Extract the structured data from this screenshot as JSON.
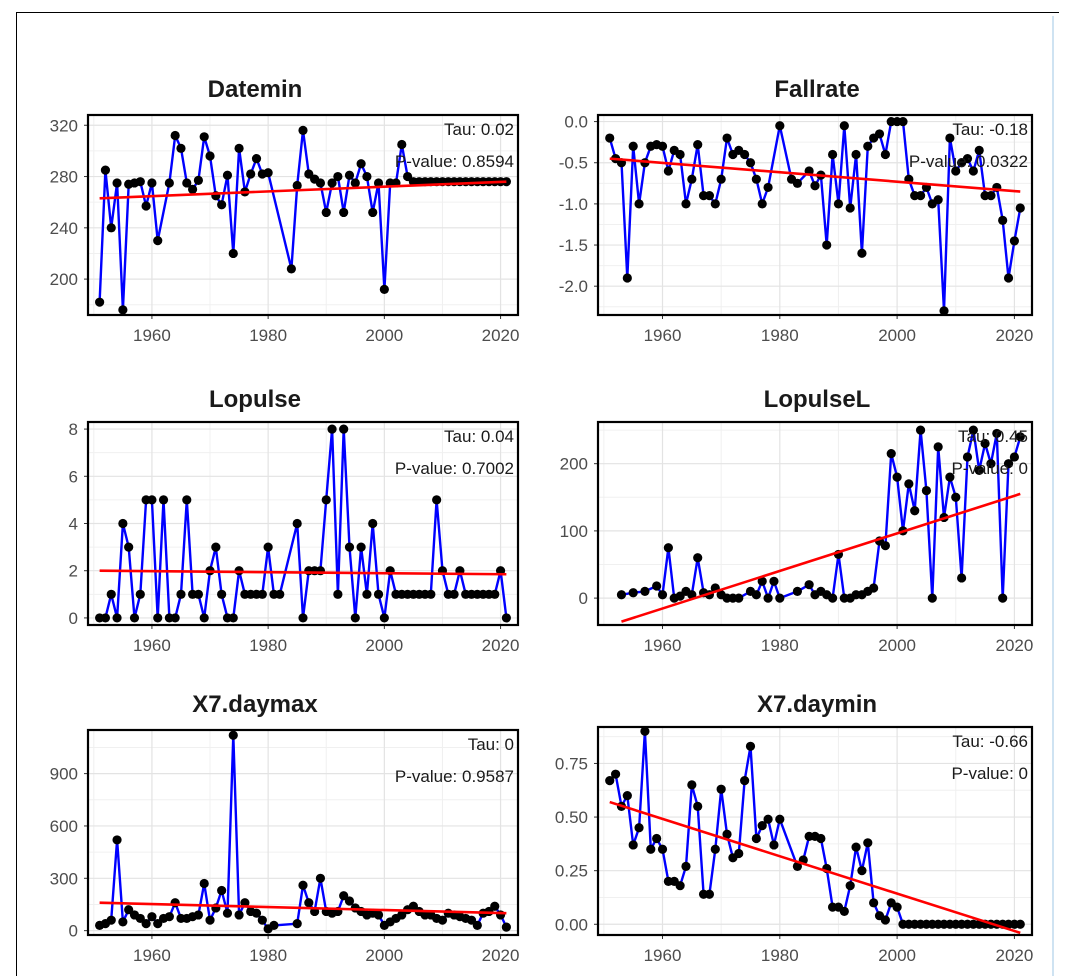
{
  "chart_data": [
    {
      "type": "line",
      "title": "Datemin",
      "xlabel": "",
      "ylabel": "",
      "xlim": [
        1949,
        2023
      ],
      "ylim": [
        172,
        328
      ],
      "xticks": [
        1960,
        1980,
        2000,
        2020
      ],
      "yticks": [
        200,
        240,
        280,
        320
      ],
      "grid": true,
      "legend": "none",
      "annotations": [
        "Tau: 0.02",
        "P-value: 0.8594"
      ],
      "trend": {
        "x": [
          1951,
          2021
        ],
        "y": [
          263,
          276
        ]
      },
      "series": [
        {
          "x": [
            1951,
            1952,
            1953,
            1954,
            1955,
            1956,
            1957,
            1958,
            1959,
            1960,
            1961,
            1963,
            1964,
            1965,
            1966,
            1967,
            1968,
            1969,
            1970,
            1971,
            1972,
            1973,
            1974,
            1975,
            1976,
            1977,
            1978,
            1979,
            1980,
            1984,
            1985,
            1986,
            1987,
            1988,
            1989,
            1990,
            1991,
            1992,
            1993,
            1994,
            1995,
            1996,
            1997,
            1998,
            1999,
            2000,
            2001,
            2002,
            2003,
            2004,
            2005,
            2006,
            2007,
            2008,
            2009,
            2010,
            2011,
            2012,
            2013,
            2014,
            2015,
            2016,
            2017,
            2018,
            2019,
            2020,
            2021
          ],
          "y": [
            182,
            285,
            240,
            275,
            176,
            274,
            275,
            276,
            257,
            275,
            230,
            275,
            312,
            302,
            275,
            270,
            277,
            311,
            296,
            265,
            258,
            281,
            220,
            302,
            268,
            282,
            294,
            282,
            283,
            208,
            273,
            316,
            282,
            278,
            275,
            252,
            275,
            280,
            252,
            281,
            275,
            290,
            280,
            252,
            275,
            192,
            275,
            275,
            305,
            280,
            276,
            276,
            276,
            276,
            276,
            276,
            276,
            276,
            276,
            276,
            276,
            276,
            276,
            276,
            276,
            276,
            276
          ]
        }
      ]
    },
    {
      "type": "line",
      "title": "Fallrate",
      "xlabel": "",
      "ylabel": "",
      "xlim": [
        1949,
        2023
      ],
      "ylim": [
        -2.35,
        0.08
      ],
      "xticks": [
        1960,
        1980,
        2000,
        2020
      ],
      "yticks": [
        "-2.0",
        "-1.5",
        "-1.0",
        "-0.5",
        "0.0"
      ],
      "grid": true,
      "legend": "none",
      "annotations": [
        "Tau: -0.18",
        "P-value: 0.0322"
      ],
      "trend": {
        "x": [
          1951,
          2021
        ],
        "y": [
          -0.45,
          -0.85
        ]
      },
      "series": [
        {
          "x": [
            1951,
            1952,
            1953,
            1954,
            1955,
            1956,
            1957,
            1958,
            1959,
            1960,
            1961,
            1962,
            1963,
            1964,
            1965,
            1966,
            1967,
            1968,
            1969,
            1970,
            1971,
            1972,
            1973,
            1974,
            1975,
            1976,
            1977,
            1978,
            1980,
            1982,
            1983,
            1985,
            1986,
            1987,
            1988,
            1989,
            1990,
            1991,
            1992,
            1993,
            1994,
            1995,
            1996,
            1997,
            1998,
            1999,
            2000,
            2001,
            2002,
            2003,
            2004,
            2005,
            2006,
            2007,
            2008,
            2009,
            2010,
            2011,
            2012,
            2013,
            2014,
            2015,
            2016,
            2017,
            2018,
            2019,
            2020,
            2021
          ],
          "y": [
            -0.2,
            -0.45,
            -0.5,
            -1.9,
            -0.3,
            -1.0,
            -0.5,
            -0.3,
            -0.28,
            -0.3,
            -0.6,
            -0.35,
            -0.4,
            -1.0,
            -0.7,
            -0.28,
            -0.9,
            -0.9,
            -1.0,
            -0.7,
            -0.2,
            -0.4,
            -0.35,
            -0.4,
            -0.5,
            -0.7,
            -1.0,
            -0.8,
            -0.05,
            -0.7,
            -0.75,
            -0.6,
            -0.78,
            -0.65,
            -1.5,
            -0.4,
            -1.0,
            -0.05,
            -1.05,
            -0.4,
            -1.6,
            -0.3,
            -0.2,
            -0.15,
            -0.4,
            0.0,
            0.0,
            0.0,
            -0.7,
            -0.9,
            -0.9,
            -0.8,
            -1.0,
            -0.95,
            -2.3,
            -0.2,
            -0.6,
            -0.5,
            -0.45,
            -0.6,
            -0.35,
            -0.9,
            -0.9,
            -0.8,
            -1.2,
            -1.9,
            -1.45,
            -1.05
          ]
        }
      ]
    },
    {
      "type": "line",
      "title": "Lopulse",
      "xlabel": "",
      "ylabel": "",
      "xlim": [
        1949,
        2023
      ],
      "ylim": [
        -0.3,
        8.3
      ],
      "xticks": [
        1960,
        1980,
        2000,
        2020
      ],
      "yticks": [
        0,
        2,
        4,
        6,
        8
      ],
      "grid": true,
      "legend": "none",
      "annotations": [
        "Tau: 0.04",
        "P-value: 0.7002"
      ],
      "trend": {
        "x": [
          1951,
          2021
        ],
        "y": [
          2.0,
          1.85
        ]
      },
      "series": [
        {
          "x": [
            1951,
            1952,
            1953,
            1954,
            1955,
            1956,
            1957,
            1958,
            1959,
            1960,
            1961,
            1962,
            1963,
            1964,
            1965,
            1966,
            1967,
            1968,
            1969,
            1970,
            1971,
            1972,
            1973,
            1974,
            1975,
            1976,
            1977,
            1978,
            1979,
            1980,
            1981,
            1982,
            1985,
            1986,
            1987,
            1988,
            1989,
            1990,
            1991,
            1992,
            1993,
            1994,
            1995,
            1996,
            1997,
            1998,
            1999,
            2000,
            2001,
            2002,
            2003,
            2004,
            2005,
            2006,
            2007,
            2008,
            2009,
            2010,
            2011,
            2012,
            2013,
            2014,
            2015,
            2016,
            2017,
            2018,
            2019,
            2020,
            2021
          ],
          "y": [
            0,
            0,
            1,
            0,
            4,
            3,
            0,
            1,
            5,
            5,
            0,
            5,
            0,
            0,
            1,
            5,
            1,
            1,
            0,
            2,
            3,
            1,
            0,
            0,
            2,
            1,
            1,
            1,
            1,
            3,
            1,
            1,
            4,
            0,
            2,
            2,
            2,
            5,
            8,
            1,
            8,
            3,
            0,
            3,
            1,
            4,
            1,
            0,
            2,
            1,
            1,
            1,
            1,
            1,
            1,
            1,
            5,
            2,
            1,
            1,
            2,
            1,
            1,
            1,
            1,
            1,
            1,
            2,
            0
          ]
        }
      ]
    },
    {
      "type": "line",
      "title": "LopulseL",
      "xlabel": "",
      "ylabel": "",
      "xlim": [
        1949,
        2023
      ],
      "ylim": [
        -40,
        262
      ],
      "xticks": [
        1960,
        1980,
        2000,
        2020
      ],
      "yticks": [
        0,
        100,
        200
      ],
      "grid": true,
      "legend": "none",
      "annotations": [
        "Tau: 0.45",
        "P-value: 0"
      ],
      "trend": {
        "x": [
          1953,
          2021
        ],
        "y": [
          -35,
          155
        ]
      },
      "series": [
        {
          "x": [
            1953,
            1955,
            1957,
            1959,
            1960,
            1961,
            1962,
            1963,
            1964,
            1965,
            1966,
            1967,
            1968,
            1969,
            1970,
            1971,
            1972,
            1973,
            1975,
            1976,
            1977,
            1978,
            1979,
            1980,
            1983,
            1985,
            1986,
            1987,
            1988,
            1989,
            1990,
            1991,
            1992,
            1993,
            1994,
            1995,
            1996,
            1997,
            1998,
            1999,
            2000,
            2001,
            2002,
            2003,
            2004,
            2005,
            2006,
            2007,
            2008,
            2009,
            2010,
            2011,
            2012,
            2013,
            2014,
            2015,
            2016,
            2017,
            2018,
            2019,
            2020,
            2021
          ],
          "y": [
            5,
            8,
            10,
            18,
            5,
            75,
            0,
            3,
            10,
            5,
            60,
            8,
            5,
            15,
            5,
            0,
            0,
            0,
            10,
            5,
            25,
            0,
            25,
            0,
            10,
            20,
            5,
            10,
            5,
            0,
            65,
            0,
            0,
            5,
            5,
            10,
            15,
            85,
            78,
            215,
            180,
            100,
            170,
            130,
            250,
            160,
            0,
            225,
            120,
            180,
            150,
            30,
            210,
            250,
            190,
            230,
            200,
            245,
            0,
            200,
            210,
            240
          ]
        }
      ]
    },
    {
      "type": "line",
      "title": "X7.daymax",
      "xlabel": "",
      "ylabel": "",
      "xlim": [
        1949,
        2023
      ],
      "ylim": [
        -25,
        1150
      ],
      "xticks": [
        1960,
        1980,
        2000,
        2020
      ],
      "yticks": [
        0,
        300,
        600,
        900
      ],
      "grid": true,
      "legend": "none",
      "annotations": [
        "Tau: 0",
        "P-value: 0.9587"
      ],
      "trend": {
        "x": [
          1951,
          2021
        ],
        "y": [
          160,
          100
        ]
      },
      "series": [
        {
          "x": [
            1951,
            1952,
            1953,
            1954,
            1955,
            1956,
            1957,
            1958,
            1959,
            1960,
            1961,
            1962,
            1963,
            1964,
            1965,
            1966,
            1967,
            1968,
            1969,
            1970,
            1971,
            1972,
            1973,
            1974,
            1975,
            1976,
            1977,
            1978,
            1979,
            1980,
            1981,
            1985,
            1986,
            1987,
            1988,
            1989,
            1990,
            1991,
            1992,
            1993,
            1994,
            1995,
            1996,
            1997,
            1998,
            1999,
            2000,
            2001,
            2002,
            2003,
            2004,
            2005,
            2006,
            2007,
            2008,
            2009,
            2010,
            2011,
            2012,
            2013,
            2014,
            2015,
            2016,
            2017,
            2018,
            2019,
            2020,
            2021
          ],
          "y": [
            30,
            40,
            60,
            520,
            50,
            120,
            90,
            70,
            40,
            80,
            40,
            70,
            80,
            160,
            70,
            70,
            80,
            90,
            270,
            60,
            130,
            230,
            100,
            1120,
            90,
            160,
            110,
            100,
            60,
            10,
            30,
            40,
            260,
            160,
            110,
            300,
            110,
            100,
            110,
            200,
            170,
            130,
            110,
            90,
            100,
            90,
            30,
            50,
            70,
            90,
            120,
            140,
            110,
            90,
            90,
            70,
            60,
            100,
            90,
            80,
            70,
            60,
            30,
            100,
            110,
            140,
            90,
            20
          ]
        }
      ]
    },
    {
      "type": "line",
      "title": "X7.daymin",
      "xlabel": "",
      "ylabel": "",
      "xlim": [
        1949,
        2023
      ],
      "ylim": [
        -0.05,
        0.92
      ],
      "xticks": [
        1960,
        1980,
        2000,
        2020
      ],
      "yticks": [
        "0.00",
        "0.25",
        "0.50",
        "0.75"
      ],
      "grid": true,
      "legend": "none",
      "annotations": [
        "Tau: -0.66",
        "P-value: 0"
      ],
      "trend": {
        "x": [
          1951,
          2021
        ],
        "y": [
          0.57,
          -0.04
        ]
      },
      "series": [
        {
          "x": [
            1951,
            1952,
            1953,
            1954,
            1955,
            1956,
            1957,
            1958,
            1959,
            1960,
            1961,
            1962,
            1963,
            1964,
            1965,
            1966,
            1967,
            1968,
            1969,
            1970,
            1971,
            1972,
            1973,
            1974,
            1975,
            1976,
            1977,
            1978,
            1979,
            1980,
            1983,
            1984,
            1985,
            1986,
            1987,
            1988,
            1989,
            1990,
            1991,
            1992,
            1993,
            1994,
            1995,
            1996,
            1997,
            1998,
            1999,
            2000,
            2001,
            2002,
            2003,
            2004,
            2005,
            2006,
            2007,
            2008,
            2009,
            2010,
            2011,
            2012,
            2013,
            2014,
            2015,
            2016,
            2017,
            2018,
            2019,
            2020,
            2021
          ],
          "y": [
            0.67,
            0.7,
            0.55,
            0.6,
            0.37,
            0.45,
            0.9,
            0.35,
            0.4,
            0.35,
            0.2,
            0.2,
            0.18,
            0.27,
            0.65,
            0.55,
            0.14,
            0.14,
            0.35,
            0.63,
            0.42,
            0.31,
            0.33,
            0.67,
            0.83,
            0.4,
            0.46,
            0.49,
            0.37,
            0.49,
            0.27,
            0.3,
            0.41,
            0.41,
            0.4,
            0.26,
            0.08,
            0.08,
            0.06,
            0.18,
            0.36,
            0.25,
            0.38,
            0.1,
            0.04,
            0.02,
            0.1,
            0.08,
            0.0,
            0.0,
            0.0,
            0.0,
            0.0,
            0.0,
            0.0,
            0.0,
            0.0,
            0.0,
            0.0,
            0.0,
            0.0,
            0.0,
            0.0,
            0.0,
            0.0,
            0.0,
            0.0,
            0.0,
            0.0
          ]
        }
      ]
    }
  ]
}
